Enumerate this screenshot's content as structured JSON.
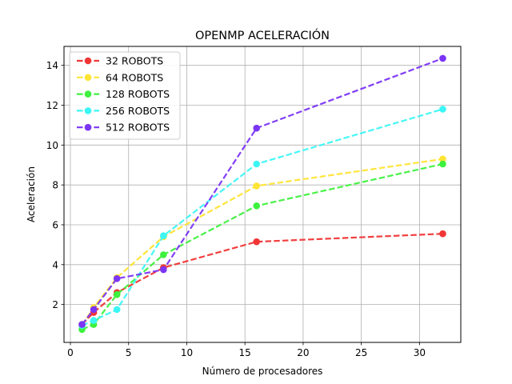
{
  "chart_data": {
    "type": "line",
    "title": "OPENMP ACELERACIÓN",
    "xlabel": "Número de procesadores",
    "ylabel": "Aceleración",
    "xlim": [
      -0.55,
      33.55
    ],
    "ylim": [
      0.1,
      14.95
    ],
    "xticks": [
      0,
      5,
      10,
      15,
      20,
      25,
      30
    ],
    "yticks": [
      2,
      4,
      6,
      8,
      10,
      12,
      14
    ],
    "grid": true,
    "legend_position": "top-left",
    "x": [
      1,
      2,
      4,
      8,
      16,
      32
    ],
    "series": [
      {
        "name": "32 ROBOTS",
        "color": "#f03535",
        "values": [
          1.0,
          1.6,
          2.6,
          3.85,
          5.15,
          5.55
        ]
      },
      {
        "name": "64 ROBOTS",
        "color": "#ffe433",
        "values": [
          0.95,
          1.85,
          3.35,
          5.4,
          7.95,
          9.3
        ]
      },
      {
        "name": "128 ROBOTS",
        "color": "#3ef13e",
        "values": [
          0.75,
          1.0,
          2.5,
          4.5,
          6.95,
          9.05
        ]
      },
      {
        "name": "256 ROBOTS",
        "color": "#3cf5f5",
        "values": [
          0.95,
          1.2,
          1.75,
          5.45,
          9.05,
          11.8
        ]
      },
      {
        "name": "512 ROBOTS",
        "color": "#7b35f5",
        "values": [
          1.0,
          1.75,
          3.3,
          3.75,
          10.85,
          14.35
        ]
      }
    ]
  }
}
